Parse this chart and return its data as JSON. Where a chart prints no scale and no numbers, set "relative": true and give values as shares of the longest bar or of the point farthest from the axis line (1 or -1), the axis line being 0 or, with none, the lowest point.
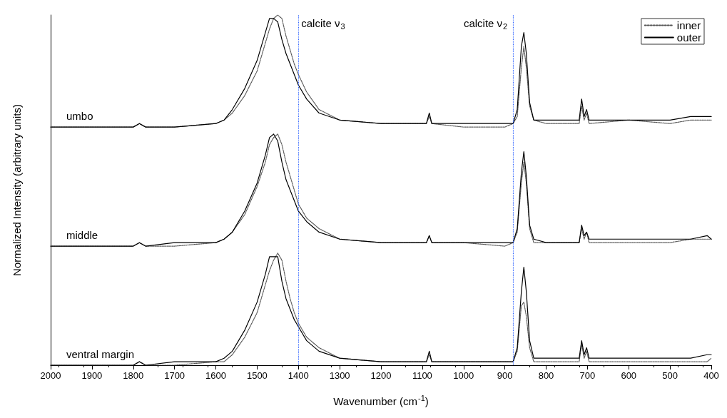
{
  "chart_data": {
    "type": "line",
    "relative": true,
    "xlabel": "Wavenumber (cm$^{-1}$)",
    "ylabel": "Normalized Intensity (arbitrary units)",
    "xlim": [
      2000,
      400
    ],
    "xticks": [
      2000,
      1900,
      1800,
      1700,
      1600,
      1500,
      1400,
      1300,
      1200,
      1100,
      1000,
      900,
      800,
      700,
      600,
      500,
      400
    ],
    "legend": "top right",
    "grid": false,
    "x": [
      2000,
      1900,
      1800,
      1785,
      1770,
      1700,
      1600,
      1580,
      1560,
      1530,
      1500,
      1480,
      1470,
      1460,
      1450,
      1440,
      1430,
      1420,
      1410,
      1400,
      1380,
      1350,
      1300,
      1200,
      1090,
      1083,
      1077,
      1000,
      900,
      880,
      870,
      860,
      854,
      848,
      840,
      830,
      800,
      720,
      714,
      708,
      702,
      696,
      600,
      500,
      450,
      410,
      400
    ],
    "series": [
      {
        "name": "inner",
        "color": "#555555",
        "line_style": "dotted",
        "values": [
          0.68,
          0.68,
          0.68,
          0.69,
          0.68,
          0.68,
          0.69,
          0.7,
          0.72,
          0.77,
          0.84,
          0.92,
          0.96,
          0.99,
          1,
          0.99,
          0.94,
          0.9,
          0.86,
          0.83,
          0.78,
          0.73,
          0.7,
          0.69,
          0.69,
          0.71,
          0.69,
          0.68,
          0.68,
          0.69,
          0.71,
          0.85,
          0.91,
          0.85,
          0.74,
          0.7,
          0.69,
          0.69,
          0.74,
          0.7,
          0.72,
          0.69,
          0.7,
          0.69,
          0.7,
          0.7,
          0.7
        ]
      },
      {
        "name": "outer",
        "color": "#000000",
        "line_style": "solid",
        "values": [
          0.68,
          0.68,
          0.68,
          0.69,
          0.68,
          0.68,
          0.69,
          0.7,
          0.73,
          0.79,
          0.87,
          0.95,
          0.99,
          0.99,
          0.98,
          0.93,
          0.89,
          0.86,
          0.83,
          0.8,
          0.76,
          0.72,
          0.7,
          0.69,
          0.69,
          0.72,
          0.69,
          0.69,
          0.69,
          0.69,
          0.73,
          0.91,
          0.95,
          0.89,
          0.75,
          0.7,
          0.7,
          0.7,
          0.76,
          0.71,
          0.73,
          0.7,
          0.7,
          0.7,
          0.71,
          0.71,
          0.71
        ]
      },
      {
        "color": "#555555",
        "line_style": "dotted",
        "values": [
          0.34,
          0.34,
          0.34,
          0.35,
          0.34,
          0.34,
          0.35,
          0.36,
          0.38,
          0.43,
          0.51,
          0.58,
          0.63,
          0.65,
          0.66,
          0.63,
          0.58,
          0.54,
          0.5,
          0.46,
          0.42,
          0.39,
          0.36,
          0.35,
          0.35,
          0.37,
          0.35,
          0.35,
          0.34,
          0.35,
          0.38,
          0.52,
          0.58,
          0.52,
          0.39,
          0.35,
          0.35,
          0.35,
          0.39,
          0.36,
          0.38,
          0.35,
          0.35,
          0.35,
          0.36,
          0.36,
          0.36
        ]
      },
      {
        "color": "#000000",
        "line_style": "solid",
        "values": [
          0.34,
          0.34,
          0.34,
          0.35,
          0.34,
          0.35,
          0.35,
          0.36,
          0.38,
          0.44,
          0.52,
          0.6,
          0.65,
          0.66,
          0.64,
          0.58,
          0.53,
          0.5,
          0.47,
          0.44,
          0.41,
          0.38,
          0.36,
          0.35,
          0.35,
          0.37,
          0.35,
          0.35,
          0.35,
          0.35,
          0.39,
          0.55,
          0.61,
          0.54,
          0.4,
          0.36,
          0.35,
          0.35,
          0.4,
          0.37,
          0.38,
          0.36,
          0.36,
          0.36,
          0.36,
          0.37,
          0.36
        ]
      },
      {
        "color": "#555555",
        "line_style": "dotted",
        "values": [
          0,
          0,
          0,
          0.01,
          0,
          0,
          0.01,
          0.01,
          0.03,
          0.08,
          0.15,
          0.23,
          0.27,
          0.3,
          0.32,
          0.3,
          0.24,
          0.19,
          0.15,
          0.12,
          0.08,
          0.05,
          0.02,
          0.01,
          0.01,
          0.03,
          0.01,
          0.01,
          0.01,
          0.01,
          0.04,
          0.17,
          0.18,
          0.14,
          0.05,
          0.01,
          0.01,
          0.01,
          0.06,
          0.02,
          0.04,
          0.01,
          0.01,
          0.01,
          0.01,
          0.01,
          0.02
        ]
      },
      {
        "color": "#000000",
        "line_style": "solid",
        "values": [
          0,
          0,
          0,
          0.01,
          0,
          0.01,
          0.01,
          0.02,
          0.04,
          0.1,
          0.18,
          0.26,
          0.31,
          0.31,
          0.31,
          0.24,
          0.19,
          0.16,
          0.13,
          0.11,
          0.07,
          0.04,
          0.02,
          0.01,
          0.01,
          0.04,
          0.01,
          0.01,
          0.01,
          0.01,
          0.05,
          0.21,
          0.28,
          0.21,
          0.07,
          0.02,
          0.02,
          0.02,
          0.07,
          0.03,
          0.05,
          0.02,
          0.02,
          0.02,
          0.02,
          0.03,
          0.03
        ]
      }
    ],
    "ref_lines": [
      {
        "axis": "x",
        "value": 1400,
        "label": "calcite ν$_{3}$",
        "color": "#3366ff",
        "line_style": "dotted"
      },
      {
        "axis": "x",
        "value": 880,
        "label": "calcite ν$_{2}$",
        "color": "#3366ff",
        "line_style": "dotted"
      }
    ],
    "annotations": [
      "umbo",
      "middle",
      "ventral margin"
    ]
  }
}
